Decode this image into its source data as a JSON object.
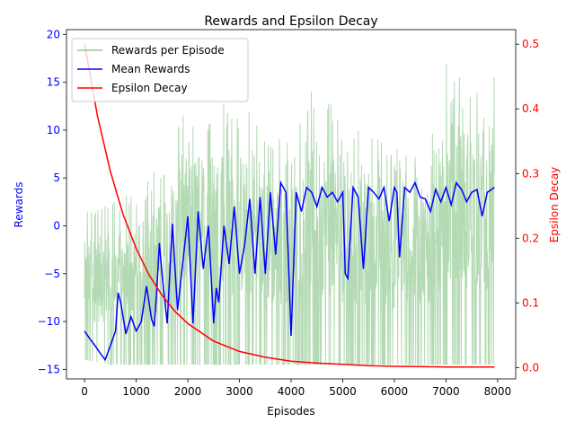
{
  "chart_data": {
    "type": "line",
    "title": "Rewards and Epsilon Decay",
    "xlabel": "Episodes",
    "ylabel_left": "Rewards",
    "ylabel_right": "Epsilon Decay",
    "xlim": [
      -350,
      8350
    ],
    "ylim_left": [
      -16,
      20.5
    ],
    "ylim_right": [
      -0.0175,
      0.5225
    ],
    "x_ticks": [
      0,
      1000,
      2000,
      3000,
      4000,
      5000,
      6000,
      7000,
      8000
    ],
    "y_left_ticks": [
      -15,
      -10,
      -5,
      0,
      5,
      10,
      15,
      20
    ],
    "y_right_ticks": [
      0.0,
      0.1,
      0.2,
      0.3,
      0.4,
      0.5
    ],
    "y_right_tick_labels": [
      "0.0",
      "0.1",
      "0.2",
      "0.3",
      "0.4",
      "0.5"
    ],
    "grid": false,
    "legend_position": "top-left",
    "colors": {
      "rewards": "#77bb77",
      "mean": "#0000ff",
      "epsilon": "#ff0000",
      "left_axis": "#0000ff",
      "right_axis": "#ff0000"
    },
    "series": [
      {
        "name": "Rewards per Episode",
        "axis": "left",
        "x_range": [
          0,
          7940
        ],
        "min": -14.5,
        "max": 17.8,
        "note_values": "noisy per-episode rewards",
        "envelope": [
          {
            "x": 0,
            "low": -14,
            "high": 1.5
          },
          {
            "x": 500,
            "low": -14.5,
            "high": 3
          },
          {
            "x": 1000,
            "low": -14.5,
            "high": 3.5
          },
          {
            "x": 1500,
            "low": -14.5,
            "high": 7
          },
          {
            "x": 2000,
            "low": -14.5,
            "high": 13
          },
          {
            "x": 2500,
            "low": -14.5,
            "high": 13.5
          },
          {
            "x": 3000,
            "low": -14.5,
            "high": 13.5
          },
          {
            "x": 3500,
            "low": -14.5,
            "high": 9.5
          },
          {
            "x": 4000,
            "low": -14.5,
            "high": 9
          },
          {
            "x": 4500,
            "low": -14.5,
            "high": 15.5
          },
          {
            "x": 5000,
            "low": -14.5,
            "high": 11
          },
          {
            "x": 5500,
            "low": -14.5,
            "high": 9.5
          },
          {
            "x": 6000,
            "low": -14.5,
            "high": 8.5
          },
          {
            "x": 6500,
            "low": -14.5,
            "high": 7
          },
          {
            "x": 7000,
            "low": -14.5,
            "high": 17.5
          },
          {
            "x": 7500,
            "low": -14.5,
            "high": 16.5
          },
          {
            "x": 7940,
            "low": -14.5,
            "high": 17
          }
        ]
      },
      {
        "name": "Mean Rewards",
        "axis": "left",
        "x": [
          0,
          100,
          200,
          300,
          400,
          500,
          600,
          650,
          700,
          800,
          900,
          1000,
          1100,
          1200,
          1300,
          1350,
          1400,
          1450,
          1500,
          1600,
          1700,
          1800,
          1900,
          2000,
          2100,
          2200,
          2300,
          2400,
          2500,
          2550,
          2600,
          2700,
          2800,
          2900,
          3000,
          3100,
          3200,
          3300,
          3400,
          3500,
          3600,
          3700,
          3800,
          3900,
          4000,
          4100,
          4200,
          4300,
          4400,
          4500,
          4600,
          4700,
          4800,
          4900,
          5000,
          5050,
          5100,
          5200,
          5300,
          5400,
          5500,
          5600,
          5700,
          5800,
          5900,
          6000,
          6050,
          6100,
          6200,
          6300,
          6400,
          6500,
          6600,
          6700,
          6800,
          6900,
          7000,
          7100,
          7200,
          7300,
          7400,
          7500,
          7600,
          7700,
          7800,
          7940
        ],
        "values": [
          -11,
          -11.8,
          -12.5,
          -13.3,
          -14,
          -12.5,
          -11,
          -7,
          -8,
          -11.3,
          -9.5,
          -11,
          -10,
          -6.3,
          -9.8,
          -10.5,
          -6.5,
          -1.8,
          -5,
          -10.2,
          0.2,
          -8.8,
          -4,
          1,
          -10.2,
          1.5,
          -4.5,
          0,
          -10.2,
          -6.5,
          -8,
          0,
          -4,
          2,
          -5,
          -2,
          2.8,
          -5,
          3,
          -5,
          3.5,
          -3,
          4.5,
          3.5,
          -11.5,
          3.5,
          1.5,
          4,
          3.5,
          2,
          4,
          3,
          3.5,
          2.5,
          3.5,
          -5,
          -5.5,
          4,
          3,
          -4.5,
          4,
          3.5,
          2.8,
          4,
          0.5,
          4,
          3.5,
          -3.3,
          4,
          3.5,
          4.5,
          3,
          2.8,
          1.5,
          3.8,
          2.5,
          4,
          2.2,
          4.5,
          3.8,
          2.5,
          3.5,
          3.8,
          1,
          3.5,
          4
        ]
      },
      {
        "name": "Epsilon Decay",
        "axis": "right",
        "x": [
          0,
          250,
          500,
          750,
          1000,
          1250,
          1500,
          1750,
          2000,
          2500,
          3000,
          3500,
          4000,
          4500,
          5000,
          5500,
          6000,
          6500,
          7000,
          7500,
          7940
        ],
        "values": [
          0.5,
          0.389,
          0.303,
          0.236,
          0.184,
          0.143,
          0.112,
          0.087,
          0.068,
          0.041,
          0.025,
          0.016,
          0.01,
          0.007,
          0.005,
          0.003,
          0.002,
          0.0015,
          0.001,
          0.001,
          0.001
        ]
      }
    ]
  }
}
